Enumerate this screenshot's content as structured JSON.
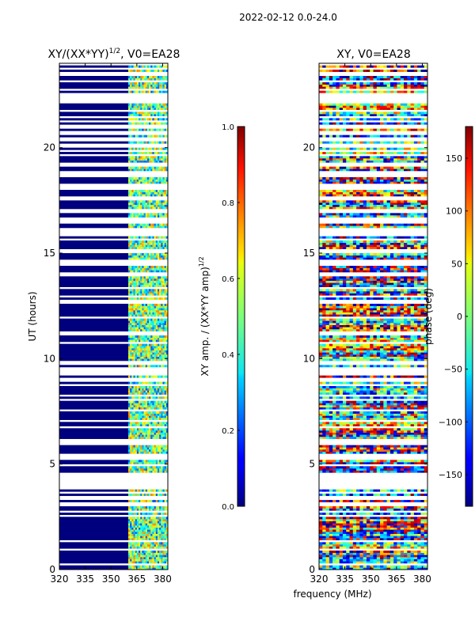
{
  "suptitle": "2022-02-12 0.0-24.0",
  "shared_xlabel": "frequency (MHz)",
  "chart_data": [
    {
      "type": "heatmap",
      "title": "XY/(XX*YY)^1/2, V0=EA28",
      "title_main": "XY/(XX*YY)",
      "title_sup": "1/2",
      "title_tail": ", V0=EA28",
      "xlabel": "",
      "ylabel": "UT (hours)",
      "xlim": [
        320,
        383
      ],
      "ylim": [
        0,
        24
      ],
      "xticks": [
        320,
        335,
        350,
        365,
        380
      ],
      "yticks": [
        0,
        5,
        10,
        15,
        20
      ],
      "colorbar": {
        "label": "XY amp. / (XX*YY amp)^1/2",
        "label_main": "XY amp. / (XX*YY amp)",
        "label_sup": "1/2",
        "range": [
          0.0,
          1.0
        ],
        "ticks": [
          "0.0",
          "0.2",
          "0.4",
          "0.6",
          "0.8",
          "1.0"
        ],
        "colormap": "jet"
      }
    },
    {
      "type": "heatmap",
      "title": "XY, V0=EA28",
      "xlabel": "frequency (MHz)",
      "ylabel": "",
      "xlim": [
        320,
        383
      ],
      "ylim": [
        0,
        24
      ],
      "xticks": [
        320,
        335,
        350,
        365,
        380
      ],
      "yticks": [
        0,
        5,
        10,
        15,
        20
      ],
      "colorbar": {
        "label": "phase (deg)",
        "range": [
          -180,
          180
        ],
        "ticks": [
          "−150",
          "−100",
          "−50",
          "0",
          "50",
          "100",
          "150"
        ],
        "tick_values": [
          -150,
          -100,
          -50,
          0,
          50,
          100,
          150
        ],
        "colormap": "jet"
      }
    }
  ]
}
